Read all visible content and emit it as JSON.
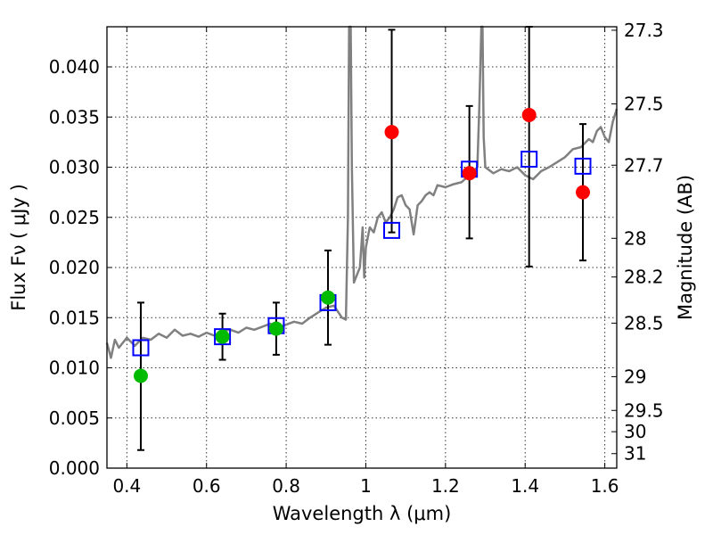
{
  "chart_data": {
    "type": "scatter",
    "xlabel": "Wavelength  λ (μm)",
    "ylabel": "Flux  Fν  ( μJy )",
    "ylabel_right": "Magnitude (AB)",
    "xlim": [
      0.35,
      1.63
    ],
    "ylim": [
      0,
      0.044
    ],
    "grid": true,
    "x_ticks": [
      {
        "value": 0.4,
        "label": "0.4"
      },
      {
        "value": 0.6,
        "label": "0.6"
      },
      {
        "value": 0.8,
        "label": "0.8"
      },
      {
        "value": 1.0,
        "label": "1"
      },
      {
        "value": 1.2,
        "label": "1.2"
      },
      {
        "value": 1.4,
        "label": "1.4"
      },
      {
        "value": 1.6,
        "label": "1.6"
      }
    ],
    "y_ticks": [
      {
        "value": 0.0,
        "label": "0.000"
      },
      {
        "value": 0.005,
        "label": "0.005"
      },
      {
        "value": 0.01,
        "label": "0.010"
      },
      {
        "value": 0.015,
        "label": "0.015"
      },
      {
        "value": 0.02,
        "label": "0.020"
      },
      {
        "value": 0.025,
        "label": "0.025"
      },
      {
        "value": 0.03,
        "label": "0.030"
      },
      {
        "value": 0.035,
        "label": "0.035"
      },
      {
        "value": 0.04,
        "label": "0.040"
      }
    ],
    "mag_ticks": [
      {
        "mag": 27.3,
        "label": "27.3"
      },
      {
        "mag": 27.5,
        "label": "27.5"
      },
      {
        "mag": 27.7,
        "label": "27.7"
      },
      {
        "mag": 28.0,
        "label": "28"
      },
      {
        "mag": 28.2,
        "label": "28.2"
      },
      {
        "mag": 28.5,
        "label": "28.5"
      },
      {
        "mag": 29.0,
        "label": "29"
      },
      {
        "mag": 29.5,
        "label": "29.5"
      },
      {
        "mag": 30.0,
        "label": "30"
      },
      {
        "mag": 31.0,
        "label": "31"
      }
    ],
    "colors": {
      "model": "#808080",
      "model_points": "#0000ff",
      "optical": "#00bb00",
      "infrared": "#ff0000",
      "errorbar": "#000000"
    },
    "model_spectrum": [
      [
        0.35,
        0.0125
      ],
      [
        0.36,
        0.011
      ],
      [
        0.37,
        0.0128
      ],
      [
        0.38,
        0.012
      ],
      [
        0.4,
        0.013
      ],
      [
        0.42,
        0.0122
      ],
      [
        0.44,
        0.013
      ],
      [
        0.46,
        0.0128
      ],
      [
        0.48,
        0.0134
      ],
      [
        0.5,
        0.013
      ],
      [
        0.52,
        0.0138
      ],
      [
        0.54,
        0.0132
      ],
      [
        0.56,
        0.0134
      ],
      [
        0.58,
        0.0131
      ],
      [
        0.6,
        0.0135
      ],
      [
        0.62,
        0.0132
      ],
      [
        0.64,
        0.0137
      ],
      [
        0.66,
        0.0138
      ],
      [
        0.68,
        0.0135
      ],
      [
        0.7,
        0.014
      ],
      [
        0.72,
        0.0138
      ],
      [
        0.74,
        0.0141
      ],
      [
        0.76,
        0.0144
      ],
      [
        0.78,
        0.014
      ],
      [
        0.8,
        0.0143
      ],
      [
        0.82,
        0.0146
      ],
      [
        0.84,
        0.0144
      ],
      [
        0.86,
        0.015
      ],
      [
        0.88,
        0.0155
      ],
      [
        0.9,
        0.016
      ],
      [
        0.92,
        0.0162
      ],
      [
        0.94,
        0.015
      ],
      [
        0.95,
        0.0148
      ],
      [
        0.955,
        0.025
      ],
      [
        0.958,
        0.044
      ],
      [
        0.962,
        0.044
      ],
      [
        0.965,
        0.03
      ],
      [
        0.97,
        0.0185
      ],
      [
        0.975,
        0.019
      ],
      [
        0.985,
        0.02
      ],
      [
        0.992,
        0.024
      ],
      [
        0.996,
        0.019
      ],
      [
        1.0,
        0.022
      ],
      [
        1.01,
        0.024
      ],
      [
        1.02,
        0.0235
      ],
      [
        1.03,
        0.025
      ],
      [
        1.04,
        0.0255
      ],
      [
        1.05,
        0.0245
      ],
      [
        1.06,
        0.025
      ],
      [
        1.07,
        0.0258
      ],
      [
        1.08,
        0.027
      ],
      [
        1.09,
        0.0272
      ],
      [
        1.1,
        0.0262
      ],
      [
        1.11,
        0.0258
      ],
      [
        1.12,
        0.0233
      ],
      [
        1.13,
        0.0262
      ],
      [
        1.14,
        0.0266
      ],
      [
        1.15,
        0.0272
      ],
      [
        1.16,
        0.0275
      ],
      [
        1.17,
        0.0272
      ],
      [
        1.18,
        0.0282
      ],
      [
        1.2,
        0.028
      ],
      [
        1.22,
        0.0283
      ],
      [
        1.24,
        0.0285
      ],
      [
        1.26,
        0.0292
      ],
      [
        1.27,
        0.0296
      ],
      [
        1.28,
        0.03
      ],
      [
        1.285,
        0.036
      ],
      [
        1.29,
        0.044
      ],
      [
        1.293,
        0.044
      ],
      [
        1.296,
        0.033
      ],
      [
        1.3,
        0.03
      ],
      [
        1.32,
        0.0294
      ],
      [
        1.34,
        0.0298
      ],
      [
        1.36,
        0.0296
      ],
      [
        1.38,
        0.03
      ],
      [
        1.4,
        0.0292
      ],
      [
        1.42,
        0.0288
      ],
      [
        1.44,
        0.0296
      ],
      [
        1.46,
        0.03
      ],
      [
        1.48,
        0.0305
      ],
      [
        1.5,
        0.031
      ],
      [
        1.52,
        0.0318
      ],
      [
        1.54,
        0.032
      ],
      [
        1.56,
        0.0328
      ],
      [
        1.57,
        0.0325
      ],
      [
        1.58,
        0.0336
      ],
      [
        1.59,
        0.034
      ],
      [
        1.6,
        0.033
      ],
      [
        1.61,
        0.0325
      ],
      [
        1.62,
        0.0345
      ],
      [
        1.63,
        0.0358
      ]
    ],
    "model_points": [
      {
        "x": 0.435,
        "y": 0.012
      },
      {
        "x": 0.64,
        "y": 0.0131
      },
      {
        "x": 0.775,
        "y": 0.0142
      },
      {
        "x": 0.905,
        "y": 0.0165
      },
      {
        "x": 1.065,
        "y": 0.0237
      },
      {
        "x": 1.26,
        "y": 0.0298
      },
      {
        "x": 1.41,
        "y": 0.0308
      },
      {
        "x": 1.545,
        "y": 0.0301
      }
    ],
    "observed_optical": [
      {
        "x": 0.435,
        "y": 0.0092,
        "lo": 0.0018,
        "hi": 0.0165
      },
      {
        "x": 0.64,
        "y": 0.0131,
        "lo": 0.0108,
        "hi": 0.0154
      },
      {
        "x": 0.775,
        "y": 0.0139,
        "lo": 0.0113,
        "hi": 0.0165
      },
      {
        "x": 0.905,
        "y": 0.017,
        "lo": 0.0123,
        "hi": 0.0217
      }
    ],
    "observed_infrared": [
      {
        "x": 1.065,
        "y": 0.0335,
        "lo": 0.0235,
        "hi": 0.0437
      },
      {
        "x": 1.26,
        "y": 0.0294,
        "lo": 0.0229,
        "hi": 0.0361
      },
      {
        "x": 1.41,
        "y": 0.0352,
        "lo": 0.0201,
        "hi": 0.044
      },
      {
        "x": 1.545,
        "y": 0.0275,
        "lo": 0.0207,
        "hi": 0.0343
      }
    ]
  }
}
